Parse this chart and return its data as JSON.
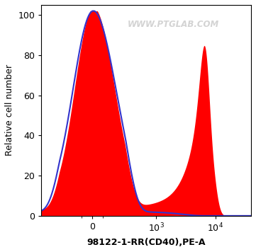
{
  "watermark": "WWW.PTGLAB.COM",
  "xlabel": "98122-1-RR(CD40),PE-A",
  "ylabel": "Relative cell number",
  "ylim": [
    0,
    105
  ],
  "yticks": [
    0,
    20,
    40,
    60,
    80,
    100
  ],
  "background_color": "#ffffff",
  "plot_bg_color": "#ffffff",
  "red_fill_color": "#ff0000",
  "blue_line_color": "#3333cc",
  "line_width": 1.5,
  "linthresh": 300,
  "linscale": 0.5
}
